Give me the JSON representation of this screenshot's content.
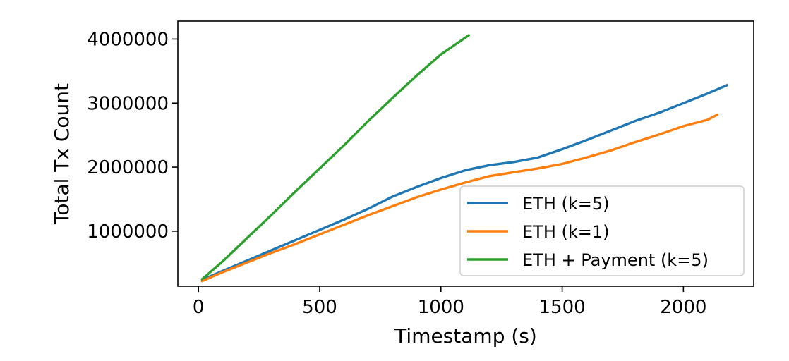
{
  "chart_data": {
    "type": "line",
    "xlabel": "Timestamp (s)",
    "ylabel": "Total Tx Count",
    "xlim": [
      -85,
      2290
    ],
    "ylim": [
      140000,
      4280000
    ],
    "xticks": [
      0,
      500,
      1000,
      1500,
      2000
    ],
    "xtick_labels": [
      "0",
      "500",
      "1000",
      "1500",
      "2000"
    ],
    "yticks": [
      1000000,
      2000000,
      3000000,
      4000000
    ],
    "ytick_labels": [
      "1000000",
      "2000000",
      "3000000",
      "4000000"
    ],
    "grid": false,
    "legend_position": "lower right",
    "series": [
      {
        "name": "ETH (k=5)",
        "color": "#1f77b4",
        "x": [
          15,
          100,
          200,
          300,
          400,
          500,
          600,
          700,
          800,
          900,
          1000,
          1100,
          1200,
          1300,
          1400,
          1500,
          1600,
          1700,
          1800,
          1900,
          2000,
          2100,
          2180
        ],
        "y": [
          240000,
          380000,
          540000,
          700000,
          860000,
          1020000,
          1180000,
          1350000,
          1540000,
          1690000,
          1830000,
          1950000,
          2030000,
          2080000,
          2150000,
          2280000,
          2420000,
          2570000,
          2720000,
          2850000,
          3000000,
          3150000,
          3280000
        ]
      },
      {
        "name": "ETH (k=1)",
        "color": "#ff7f0e",
        "x": [
          15,
          100,
          200,
          300,
          400,
          500,
          600,
          700,
          800,
          900,
          1000,
          1100,
          1200,
          1300,
          1400,
          1500,
          1600,
          1700,
          1800,
          1900,
          2000,
          2100,
          2140
        ],
        "y": [
          220000,
          360000,
          510000,
          660000,
          800000,
          950000,
          1100000,
          1250000,
          1390000,
          1530000,
          1650000,
          1760000,
          1860000,
          1920000,
          1980000,
          2050000,
          2150000,
          2260000,
          2390000,
          2510000,
          2640000,
          2740000,
          2820000
        ]
      },
      {
        "name": "ETH + Payment (k=5)",
        "color": "#2ca02c",
        "x": [
          15,
          100,
          200,
          300,
          400,
          500,
          600,
          700,
          800,
          900,
          1000,
          1100,
          1115
        ],
        "y": [
          250000,
          530000,
          890000,
          1250000,
          1620000,
          1980000,
          2340000,
          2720000,
          3080000,
          3430000,
          3760000,
          4020000,
          4060000
        ]
      }
    ]
  }
}
